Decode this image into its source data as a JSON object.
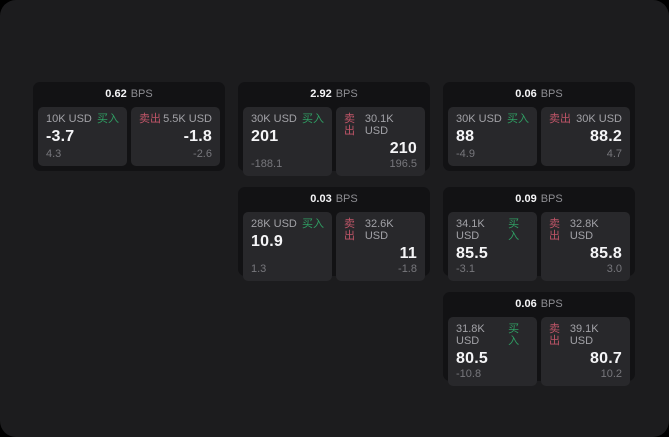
{
  "labels": {
    "bps": "BPS",
    "buy": "买入",
    "sell": "卖出"
  },
  "colors": {
    "page_background": "#1c1c1e",
    "card_background": "#121214",
    "panel_background": "#28282b",
    "buy_green": "#2f9e63",
    "sell_red": "#c05568"
  },
  "cards": [
    {
      "bps": "0.62",
      "buy": {
        "amount": "10K USD",
        "value": "-3.7",
        "sub": "4.3"
      },
      "sell": {
        "amount": "5.5K USD",
        "value": "-1.8",
        "sub": "-2.6"
      }
    },
    {
      "bps": "2.92",
      "buy": {
        "amount": "30K USD",
        "value": "201",
        "sub": "-188.1"
      },
      "sell": {
        "amount": "30.1K USD",
        "value": "210",
        "sub": "196.5"
      }
    },
    {
      "bps": "0.06",
      "buy": {
        "amount": "30K USD",
        "value": "88",
        "sub": "-4.9"
      },
      "sell": {
        "amount": "30K USD",
        "value": "88.2",
        "sub": "4.7"
      }
    },
    {
      "bps": "0.03",
      "buy": {
        "amount": "28K USD",
        "value": "10.9",
        "sub": "1.3"
      },
      "sell": {
        "amount": "32.6K USD",
        "value": "11",
        "sub": "-1.8"
      }
    },
    {
      "bps": "0.09",
      "buy": {
        "amount": "34.1K USD",
        "value": "85.5",
        "sub": "-3.1"
      },
      "sell": {
        "amount": "32.8K USD",
        "value": "85.8",
        "sub": "3.0"
      }
    },
    {
      "bps": "0.06",
      "buy": {
        "amount": "31.8K USD",
        "value": "80.5",
        "sub": "-10.8"
      },
      "sell": {
        "amount": "39.1K USD",
        "value": "80.7",
        "sub": "10.2"
      }
    }
  ]
}
